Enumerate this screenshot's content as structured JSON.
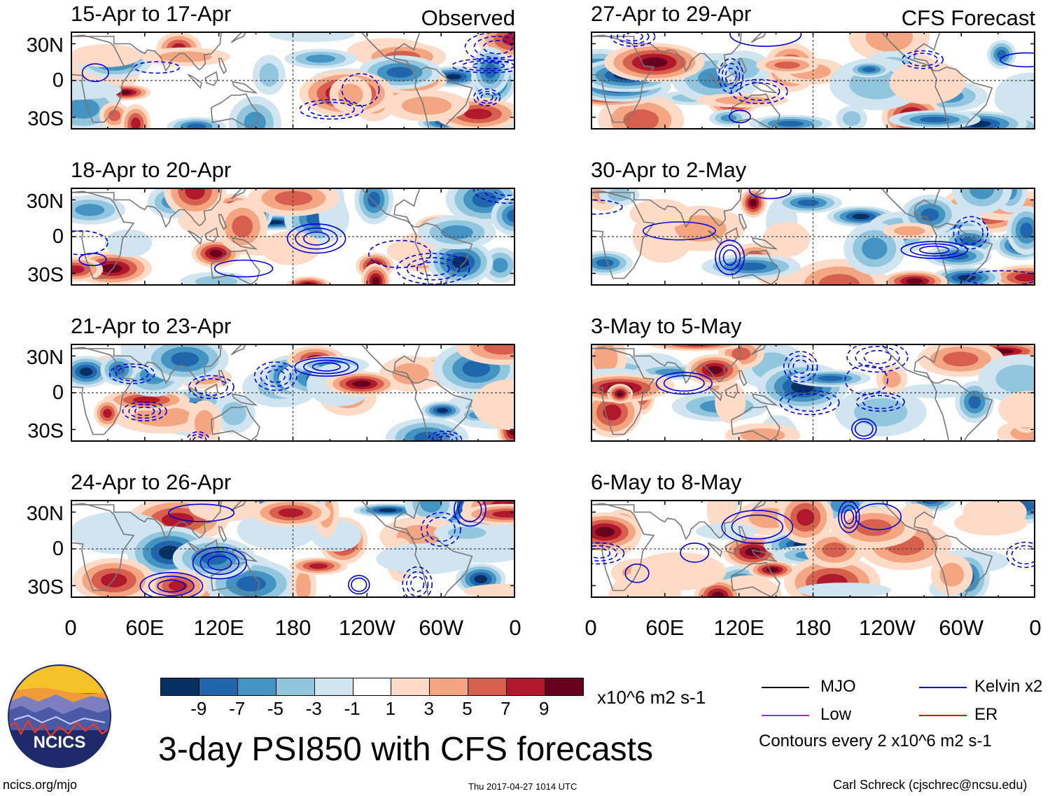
{
  "colors": {
    "neg": [
      "#053061",
      "#2166ac",
      "#4393c3",
      "#92c5de",
      "#d1e5f0"
    ],
    "mid": "#ffffff",
    "pos": [
      "#fddbc7",
      "#f4a582",
      "#d6604d",
      "#b2182b",
      "#67001f"
    ],
    "contour_kelvin": "#0000dd",
    "coast": "#777777",
    "mjo_line": "#000000",
    "low_line": "#9933cc",
    "er_line": "#dd0000"
  },
  "panels": [
    {
      "title": "15-Apr to 17-Apr",
      "tag": "Observed"
    },
    {
      "title": "18-Apr to 20-Apr",
      "tag": ""
    },
    {
      "title": "21-Apr to 23-Apr",
      "tag": ""
    },
    {
      "title": "24-Apr to 26-Apr",
      "tag": ""
    },
    {
      "title": "27-Apr to 29-Apr",
      "tag": "CFS Forecast"
    },
    {
      "title": "30-Apr to 2-May",
      "tag": ""
    },
    {
      "title": "3-May to 5-May",
      "tag": ""
    },
    {
      "title": "6-May to 8-May",
      "tag": ""
    }
  ],
  "chart_data": {
    "type": "heatmap",
    "title": "3-day PSI850 with CFS forecasts",
    "variable": "PSI850 anomaly",
    "units": "x10^6 m2 s-1",
    "lat_labels": [
      "30N",
      "0",
      "30S"
    ],
    "lon_labels": [
      "0",
      "60E",
      "120E",
      "180",
      "120W",
      "60W",
      "0"
    ],
    "colorbar_levels": [
      "-9",
      "-7",
      "-5",
      "-3",
      "-1",
      "1",
      "3",
      "5",
      "7",
      "9"
    ],
    "contour_note": "Contours every 2 x10^6 m2 s-1",
    "legend": [
      {
        "label": "MJO",
        "color": "#000000"
      },
      {
        "label": "Kelvin x2",
        "color": "#0000dd"
      },
      {
        "label": "Low",
        "color": "#9933cc"
      },
      {
        "label": "ER",
        "color": "#dd0000"
      }
    ]
  },
  "footer": {
    "logo_text": "NCICS",
    "left": "ncics.org/mjo",
    "center": "Thu 2017-04-27 1014 UTC",
    "right": "Carl Schreck (cjschrec@ncsu.edu)"
  }
}
